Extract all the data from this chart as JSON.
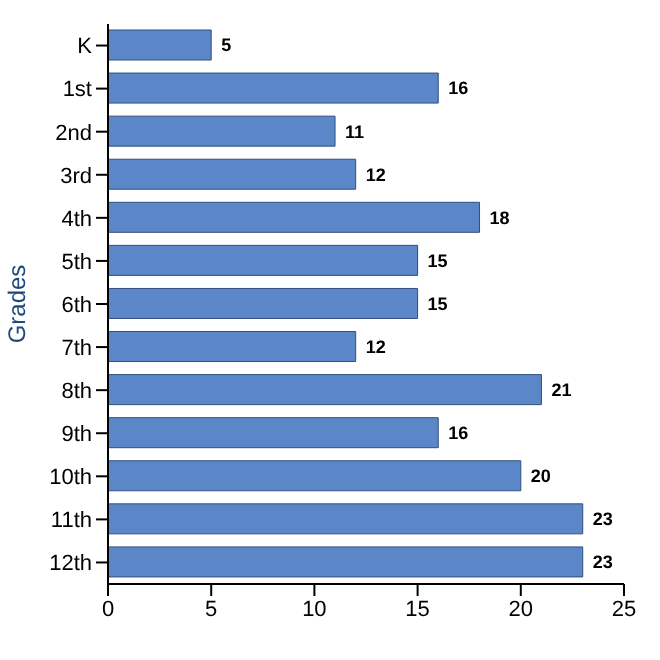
{
  "chart_data": {
    "type": "bar",
    "orientation": "horizontal",
    "ylabel": "Grades",
    "categories": [
      "K",
      "1st",
      "2nd",
      "3rd",
      "4th",
      "5th",
      "6th",
      "7th",
      "8th",
      "9th",
      "10th",
      "11th",
      "12th"
    ],
    "values": [
      5,
      16,
      11,
      12,
      18,
      15,
      15,
      12,
      21,
      16,
      20,
      23,
      23
    ],
    "color": "#5b87c8",
    "xlim": [
      0,
      25
    ],
    "xticks": [
      0,
      5,
      10,
      15,
      20,
      25
    ],
    "grid": false,
    "data_labels": true
  }
}
